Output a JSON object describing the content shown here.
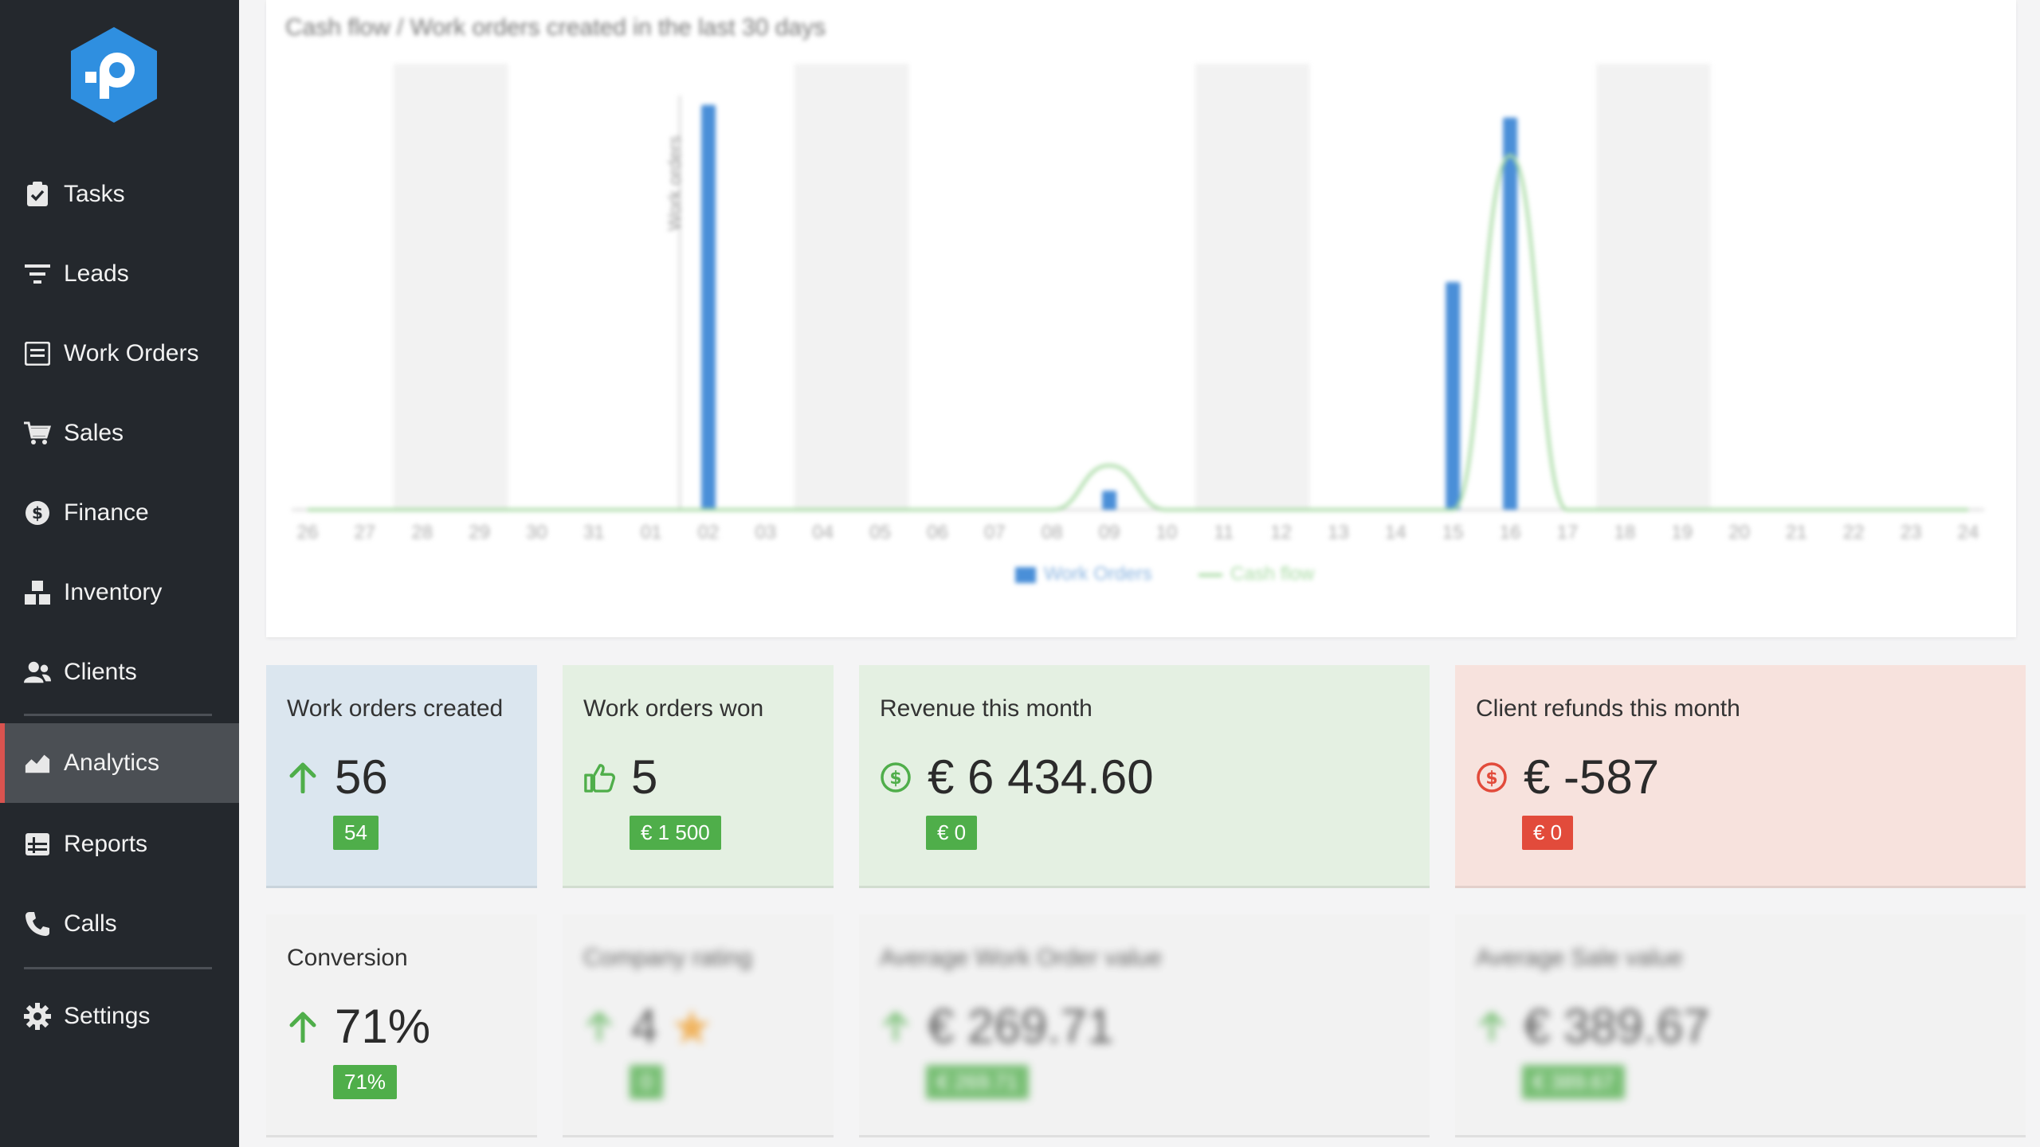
{
  "sidebar": {
    "items": [
      {
        "label": "Tasks",
        "icon": "clipboard-check-icon"
      },
      {
        "label": "Leads",
        "icon": "filter-icon"
      },
      {
        "label": "Work Orders",
        "icon": "list-alt-icon"
      },
      {
        "label": "Sales",
        "icon": "cart-icon"
      },
      {
        "label": "Finance",
        "icon": "dollar-circle-icon"
      },
      {
        "label": "Inventory",
        "icon": "boxes-icon"
      },
      {
        "label": "Clients",
        "icon": "users-icon"
      },
      {
        "label": "Analytics",
        "icon": "area-chart-icon",
        "active": true
      },
      {
        "label": "Reports",
        "icon": "table-icon"
      },
      {
        "label": "Calls",
        "icon": "phone-icon"
      },
      {
        "label": "Settings",
        "icon": "gear-icon"
      }
    ]
  },
  "chart": {
    "title": "Cash flow / Work orders created in the last 30 days",
    "y_label": "Work orders",
    "legend": [
      "Work Orders",
      "Cash flow"
    ],
    "colors": {
      "bars": "#4a8fd8",
      "line": "#a9dba5",
      "weekend": "#f2f2f2"
    }
  },
  "chart_data": {
    "type": "bar",
    "categories": [
      "26",
      "27",
      "28",
      "29",
      "30",
      "31",
      "01",
      "02",
      "03",
      "04",
      "05",
      "06",
      "07",
      "08",
      "09",
      "10",
      "11",
      "12",
      "13",
      "14",
      "15",
      "16",
      "17",
      "18",
      "19",
      "20",
      "21",
      "22",
      "23",
      "24"
    ],
    "series": [
      {
        "name": "Work Orders",
        "values": [
          0,
          0,
          0,
          0,
          0,
          0,
          0,
          32,
          0,
          0,
          0,
          0,
          0,
          0,
          1.5,
          0,
          0,
          0,
          0,
          0,
          18,
          31,
          0,
          0,
          0,
          0,
          0,
          0,
          0,
          0
        ]
      },
      {
        "name": "Cash flow",
        "values": [
          0,
          0,
          0,
          0,
          0,
          0,
          0,
          0,
          0,
          0,
          0,
          0,
          0,
          0,
          3.5,
          0,
          0,
          0,
          0,
          0,
          0,
          28,
          0,
          0,
          0,
          0,
          0,
          0,
          0,
          0
        ]
      }
    ],
    "ylim": [
      0,
      34
    ],
    "weekend_indices": [
      2,
      3,
      9,
      10,
      16,
      17,
      23,
      24
    ]
  },
  "cards": {
    "created": {
      "title": "Work orders created",
      "value": "56",
      "badge": "54",
      "icon": "arrow-up-icon"
    },
    "won": {
      "title": "Work orders won",
      "value": "5",
      "badge": "€ 1 500",
      "icon": "thumbs-up-icon"
    },
    "revenue": {
      "title": "Revenue this month",
      "value": "€ 6 434.60",
      "badge": "€ 0",
      "icon": "dollar-circle-icon"
    },
    "refunds": {
      "title": "Client refunds this month",
      "value": "€ -587",
      "badge": "€ 0",
      "icon": "dollar-circle-icon"
    },
    "conversion": {
      "title": "Conversion",
      "value": "71%",
      "badge": "71%",
      "icon": "arrow-up-icon"
    },
    "rating": {
      "title": "Company rating",
      "value": "4",
      "badge": "0",
      "icon": "arrow-up-icon"
    },
    "avg_wo": {
      "title": "Average Work Order value",
      "value": "€ 269.71",
      "badge": "€ 269.71",
      "icon": "arrow-up-icon"
    },
    "avg_sale": {
      "title": "Average Sale value",
      "value": "€ 389.67",
      "badge": "€ 389.67",
      "icon": "arrow-up-icon"
    }
  },
  "colors": {
    "created_bg": "#dbe6ef",
    "won_bg": "#e4f0e2",
    "revenue_bg": "#e4f0e2",
    "refunds_bg": "#f7e2dd",
    "neutral_bg": "#f2f2f2",
    "green": "#4fae4a",
    "red": "#e24b3b"
  }
}
